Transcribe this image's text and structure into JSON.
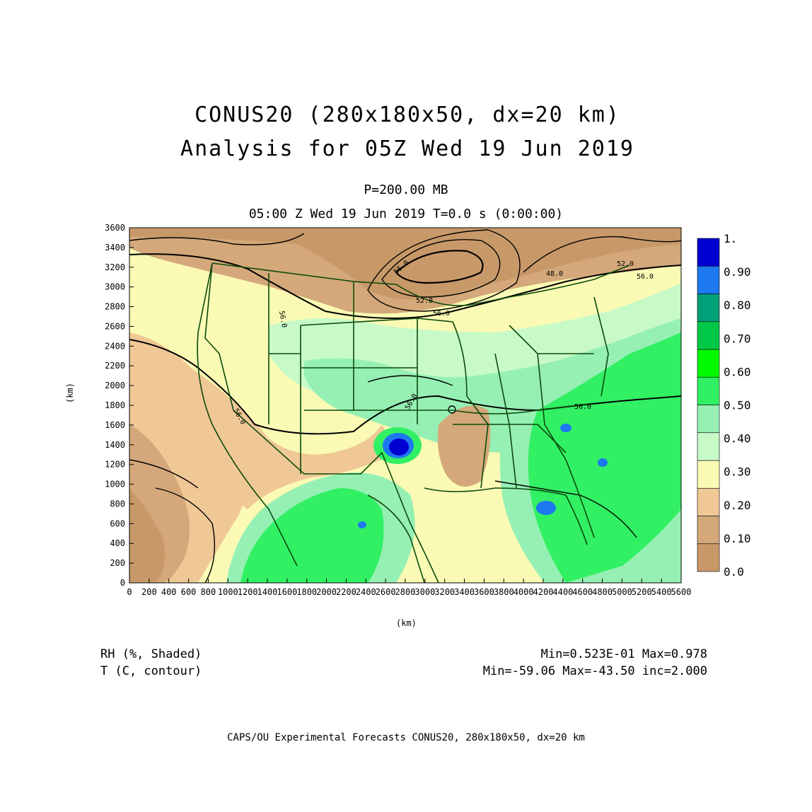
{
  "title": {
    "line1": "CONUS20 (280x180x50, dx=20 km)",
    "line2": "Analysis for 05Z Wed 19 Jun 2019"
  },
  "level_label": "P=200.00 MB",
  "time_label": "05:00 Z Wed 19 Jun 2019    T=0.0 s (0:00:00)",
  "axes": {
    "x_label": "(km)",
    "y_label": "(km)",
    "x_ticks": [
      0,
      200,
      400,
      600,
      800,
      1000,
      1200,
      1400,
      1600,
      1800,
      2000,
      2200,
      2400,
      2600,
      2800,
      3000,
      3200,
      3400,
      3600,
      3800,
      4000,
      4200,
      4400,
      4600,
      4800,
      5000,
      5200,
      5400,
      5600
    ],
    "y_ticks": [
      0,
      200,
      400,
      600,
      800,
      1000,
      1200,
      1400,
      1600,
      1800,
      2000,
      2200,
      2400,
      2600,
      2800,
      3000,
      3200,
      3400,
      3600
    ],
    "x_range": [
      0,
      5600
    ],
    "y_range": [
      0,
      3600
    ]
  },
  "colorbar": {
    "labels": [
      "0.0",
      "0.10",
      "0.20",
      "0.30",
      "0.40",
      "0.50",
      "0.60",
      "0.70",
      "0.80",
      "0.90",
      "1."
    ],
    "colors": [
      "#c89968",
      "#d4a87a",
      "#f0c896",
      "#fafab4",
      "#c8fac8",
      "#96f0b4",
      "#32f064",
      "#00fa00",
      "#00c846",
      "#00a078",
      "#1e78f0",
      "#0000d2"
    ]
  },
  "contour_labels": [
    "48.0",
    "52.0",
    "56.0",
    "52.0",
    "56.0",
    "56.0",
    "56.0",
    "56.0",
    "56.0",
    "56.0"
  ],
  "legend": {
    "shaded": "RH (%, Shaded)",
    "contour": "T (C, contour)",
    "shaded_stats": "Min=0.523E-01 Max=0.978",
    "contour_stats": "Min=-59.06 Max=-43.50 inc=2.000"
  },
  "credit": "CAPS/OU Experimental Forecasts  CONUS20, 280x180x50, dx=20 km"
}
